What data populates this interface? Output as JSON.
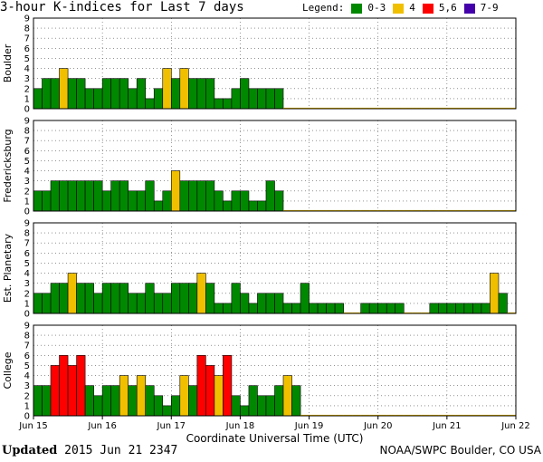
{
  "title": "3-hour K-indices for Last 7 days",
  "legend": {
    "label": "Legend:",
    "items": [
      {
        "label": "0-3",
        "color": "#008800"
      },
      {
        "label": "4",
        "color": "#f0c000"
      },
      {
        "label": "5,6",
        "color": "#ff0000"
      },
      {
        "label": "7-9",
        "color": "#4400aa"
      }
    ]
  },
  "footer": {
    "updated_label": "Updated",
    "updated_value": "2015 Jun 21 2347",
    "credit": "NOAA/SWPC Boulder, CO USA"
  },
  "chart_data": {
    "type": "bar",
    "xlabel": "Coordinate Universal Time (UTC)",
    "x_ticks": [
      "Jun 15",
      "Jun 16",
      "Jun 17",
      "Jun 18",
      "Jun 19",
      "Jun 20",
      "Jun 21",
      "Jun 22"
    ],
    "y_ticks": [
      0,
      1,
      2,
      3,
      4,
      5,
      6,
      7,
      8,
      9
    ],
    "ylim": [
      0,
      9
    ],
    "slots_per_day": 8,
    "colors": {
      "quiet": "#008800",
      "active": "#f0c000",
      "storm": "#ff0000",
      "severe": "#4400aa"
    },
    "panels": [
      {
        "ylabel": "Boulder",
        "values": [
          2,
          3,
          3,
          4,
          3,
          3,
          2,
          2,
          3,
          3,
          3,
          2,
          3,
          1,
          2,
          4,
          3,
          4,
          3,
          3,
          3,
          1,
          1,
          2,
          3,
          2,
          2,
          2,
          2
        ]
      },
      {
        "ylabel": "Fredericksburg",
        "values": [
          2,
          2,
          3,
          3,
          3,
          3,
          3,
          3,
          2,
          3,
          3,
          2,
          2,
          3,
          1,
          2,
          4,
          3,
          3,
          3,
          3,
          2,
          1,
          2,
          2,
          1,
          1,
          3,
          2
        ]
      },
      {
        "ylabel": "Est. Planetary",
        "values": [
          2,
          2,
          3,
          3,
          4,
          3,
          3,
          2,
          3,
          3,
          3,
          2,
          2,
          3,
          2,
          2,
          3,
          3,
          3,
          4,
          3,
          1,
          1,
          3,
          2,
          1,
          2,
          2,
          2,
          1,
          1,
          3,
          1,
          1,
          1,
          1,
          0,
          0,
          1,
          1,
          1,
          1,
          1,
          0,
          0,
          0,
          1,
          1,
          1,
          1,
          1,
          1,
          1,
          4,
          2
        ]
      },
      {
        "ylabel": "College",
        "values": [
          3,
          3,
          5,
          6,
          5,
          6,
          3,
          2,
          3,
          3,
          4,
          3,
          4,
          3,
          2,
          1,
          2,
          4,
          3,
          6,
          5,
          4,
          6,
          2,
          1,
          3,
          2,
          2,
          3,
          4,
          3
        ]
      }
    ]
  }
}
